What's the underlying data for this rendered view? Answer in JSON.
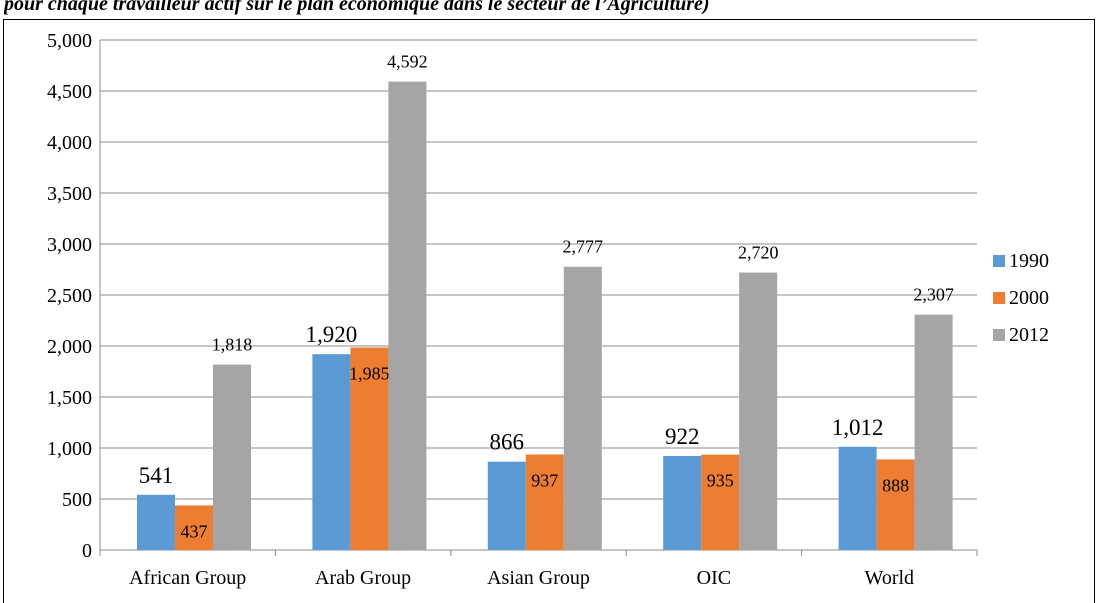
{
  "caption": "pour chaque travailleur actif sur le plan économique dans le secteur de l’Agriculture)",
  "chart_data": {
    "type": "bar",
    "title": "",
    "xlabel": "",
    "ylabel": "",
    "ylim": [
      0,
      5000
    ],
    "yticks": [
      0,
      500,
      1000,
      1500,
      2000,
      2500,
      3000,
      3500,
      4000,
      4500,
      5000
    ],
    "ytick_labels": [
      "0",
      "500",
      "1,000",
      "1,500",
      "2,000",
      "2,500",
      "3,000",
      "3,500",
      "4,000",
      "4,500",
      "5,000"
    ],
    "grid": true,
    "legend_position": "right",
    "categories": [
      "African Group",
      "Arab Group",
      "Asian Group",
      "OIC",
      "World"
    ],
    "series": [
      {
        "name": "1990",
        "color": "#5B9BD5",
        "values": [
          541,
          1920,
          866,
          922,
          1012
        ],
        "labels": [
          "541",
          "1,920",
          "866",
          "922",
          "1,012"
        ]
      },
      {
        "name": "2000",
        "color": "#ED7D31",
        "values": [
          437,
          1985,
          937,
          935,
          888
        ],
        "labels": [
          "437",
          "1,985",
          "937",
          "935",
          "888"
        ]
      },
      {
        "name": "2012",
        "color": "#A5A5A5",
        "values": [
          1818,
          4592,
          2777,
          2720,
          2307
        ],
        "labels": [
          "1,818",
          "4,592",
          "2,777",
          "2,720",
          "2,307"
        ]
      }
    ]
  }
}
